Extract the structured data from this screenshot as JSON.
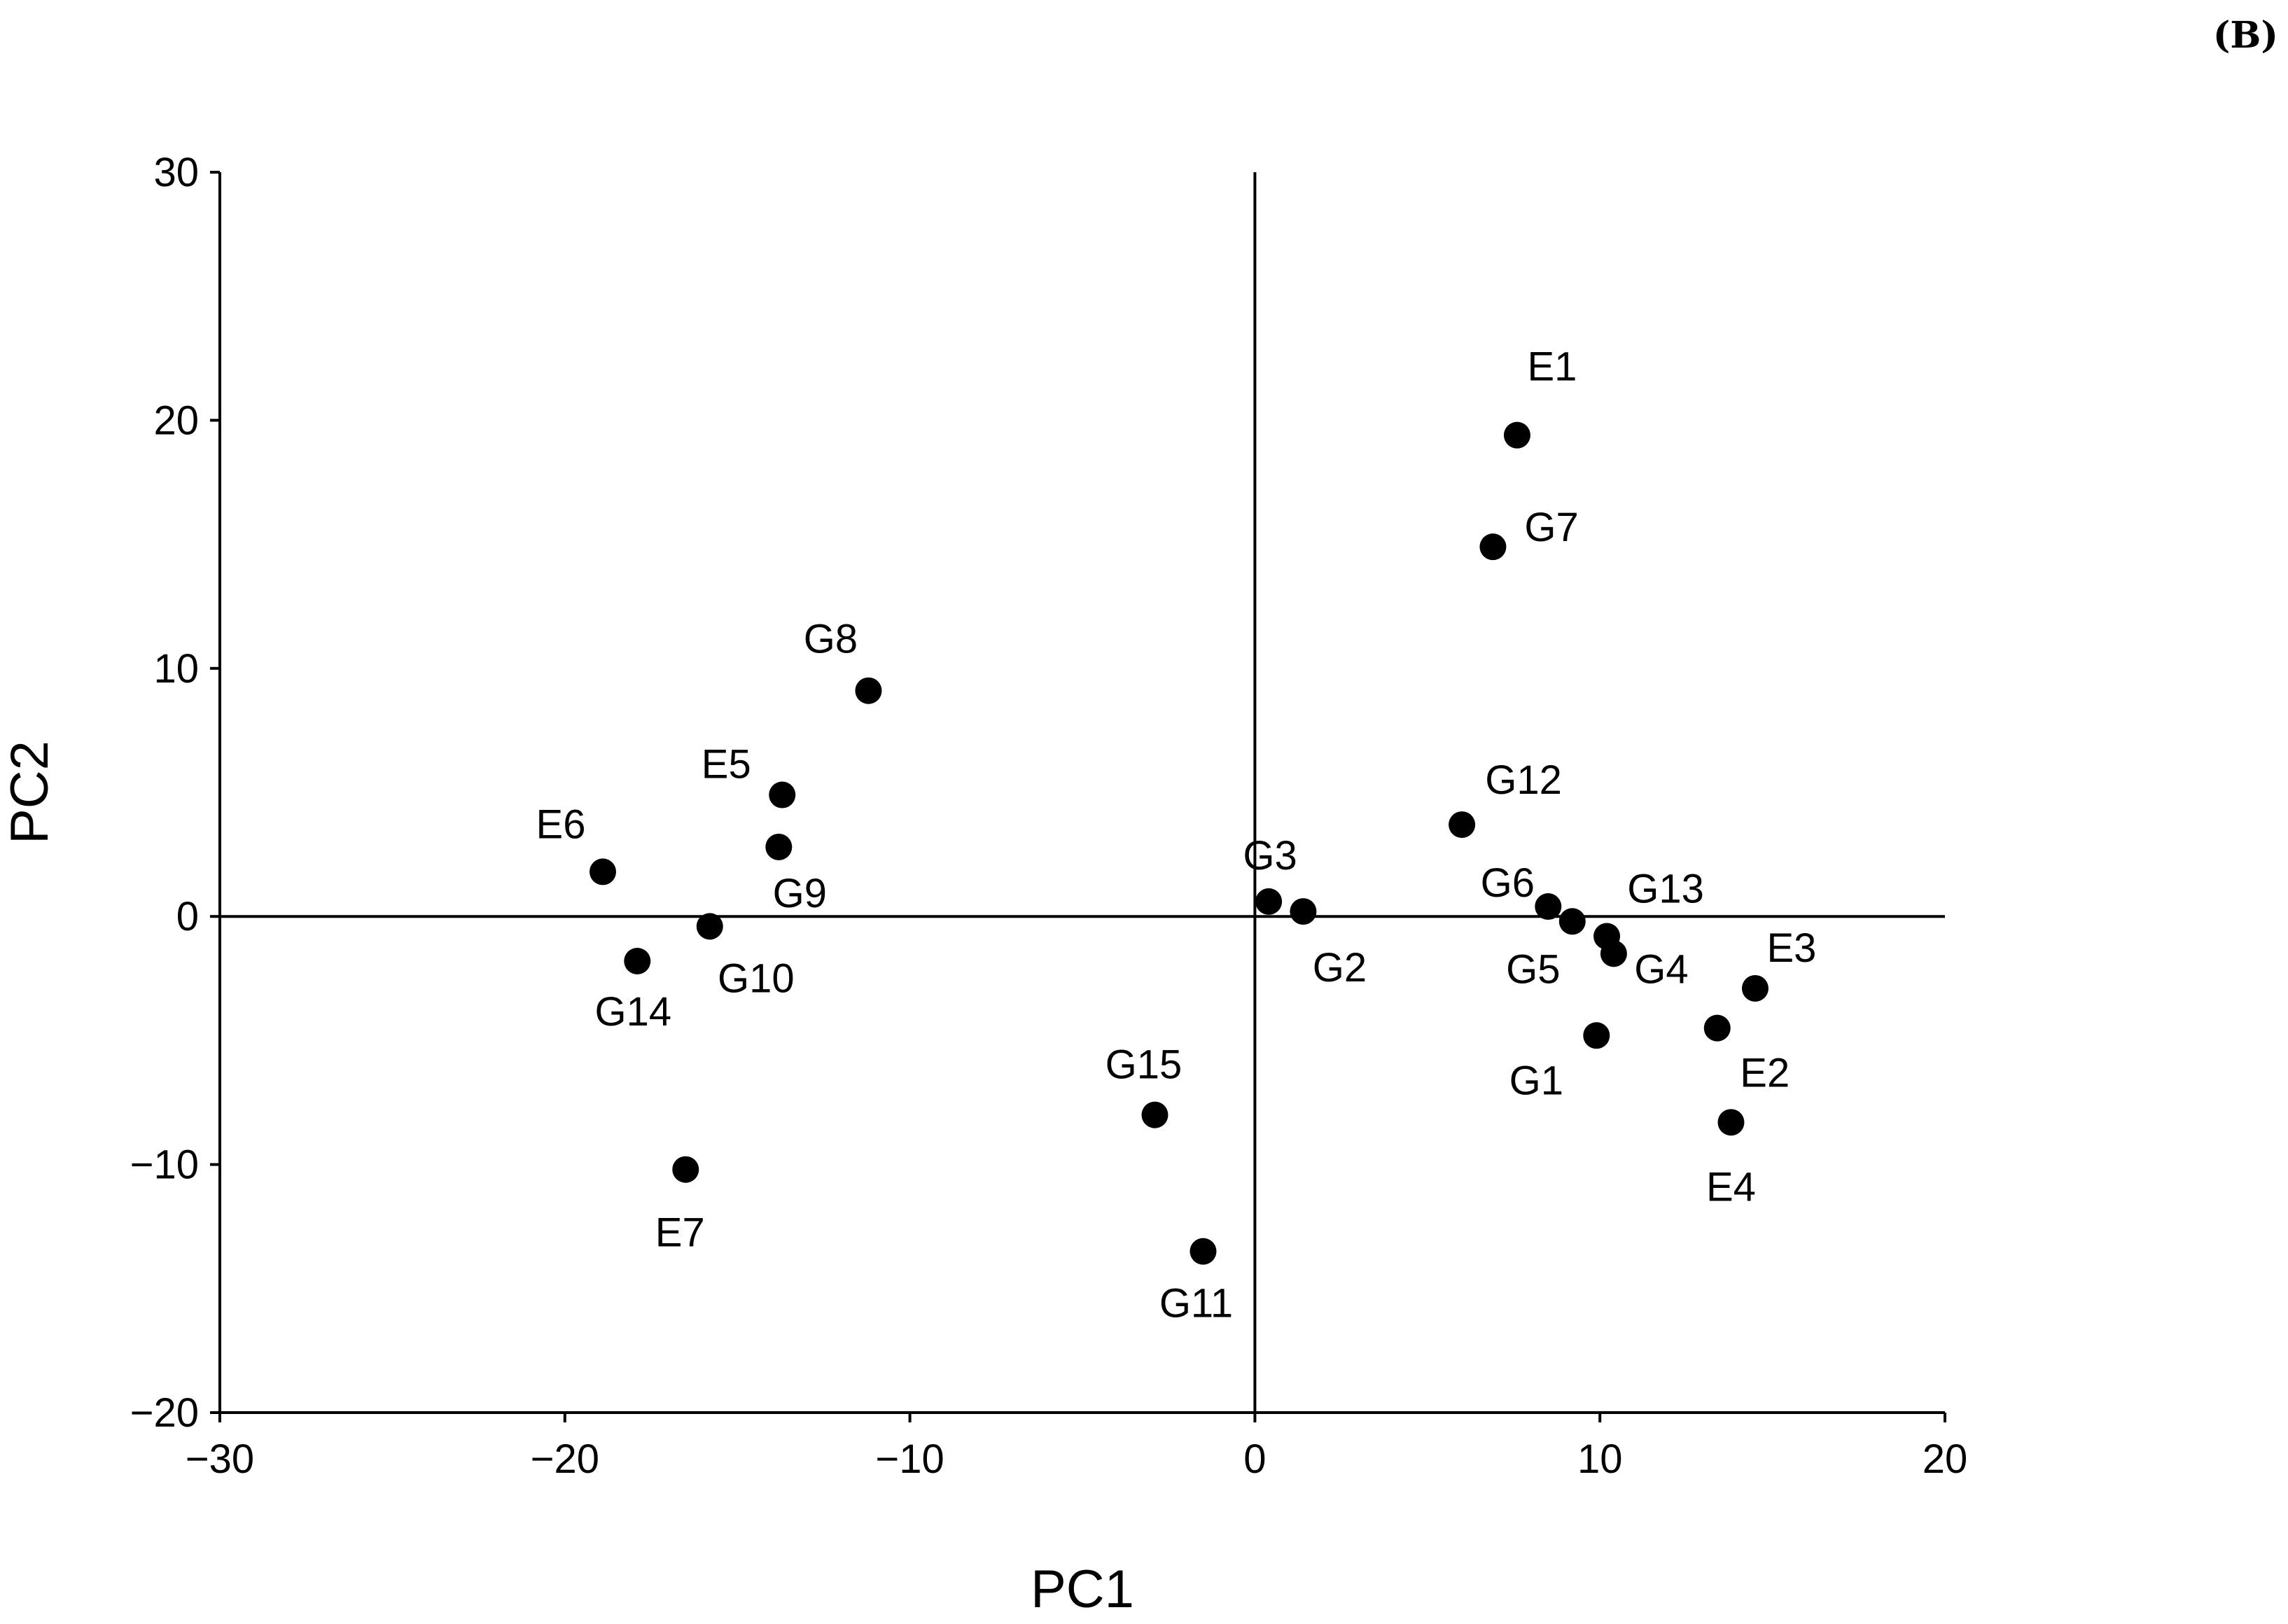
{
  "panel_label": "(B)",
  "chart_data": {
    "type": "scatter",
    "title": "",
    "xlabel": "PC1",
    "ylabel": "PC2",
    "xlim": [
      -30,
      20
    ],
    "ylim": [
      -20,
      30
    ],
    "xticks": [
      -30,
      -20,
      -10,
      0,
      10,
      20
    ],
    "yticks": [
      -20,
      -10,
      0,
      10,
      20,
      30
    ],
    "xtick_labels": [
      "−30",
      "−20",
      "−10",
      "0",
      "10",
      "20"
    ],
    "ytick_labels": [
      "−20",
      "−10",
      "0",
      "10",
      "20",
      "30"
    ],
    "zero_lines": true,
    "grid": false,
    "legend": "none",
    "marker_color": "#000000",
    "points": [
      {
        "label": "E1",
        "x": 7.6,
        "y": 19.4
      },
      {
        "label": "G7",
        "x": 6.9,
        "y": 14.9
      },
      {
        "label": "G8",
        "x": -11.2,
        "y": 9.1
      },
      {
        "label": "E5",
        "x": -13.7,
        "y": 4.9
      },
      {
        "label": "G9",
        "x": -13.8,
        "y": 2.8
      },
      {
        "label": "E6",
        "x": -18.9,
        "y": 1.8
      },
      {
        "label": "G10",
        "x": -15.8,
        "y": -0.4
      },
      {
        "label": "G14",
        "x": -17.9,
        "y": -1.8
      },
      {
        "label": "E7",
        "x": -16.5,
        "y": -10.2
      },
      {
        "label": "G15",
        "x": -2.9,
        "y": -8.0
      },
      {
        "label": "G11",
        "x": -1.5,
        "y": -13.5
      },
      {
        "label": "G3",
        "x": 0.4,
        "y": 0.6
      },
      {
        "label": "G2",
        "x": 1.4,
        "y": 0.2
      },
      {
        "label": "G12",
        "x": 6.0,
        "y": 3.7
      },
      {
        "label": "G6",
        "x": 8.5,
        "y": 0.4
      },
      {
        "label": "G5",
        "x": 9.2,
        "y": -0.2
      },
      {
        "label": "G13",
        "x": 10.2,
        "y": -0.8
      },
      {
        "label": "G4",
        "x": 10.4,
        "y": -1.5
      },
      {
        "label": "G1",
        "x": 9.9,
        "y": -4.8
      },
      {
        "label": "E3",
        "x": 14.5,
        "y": -2.9
      },
      {
        "label": "E2",
        "x": 13.4,
        "y": -4.5
      },
      {
        "label": "E4",
        "x": 13.8,
        "y": -8.3
      }
    ]
  }
}
